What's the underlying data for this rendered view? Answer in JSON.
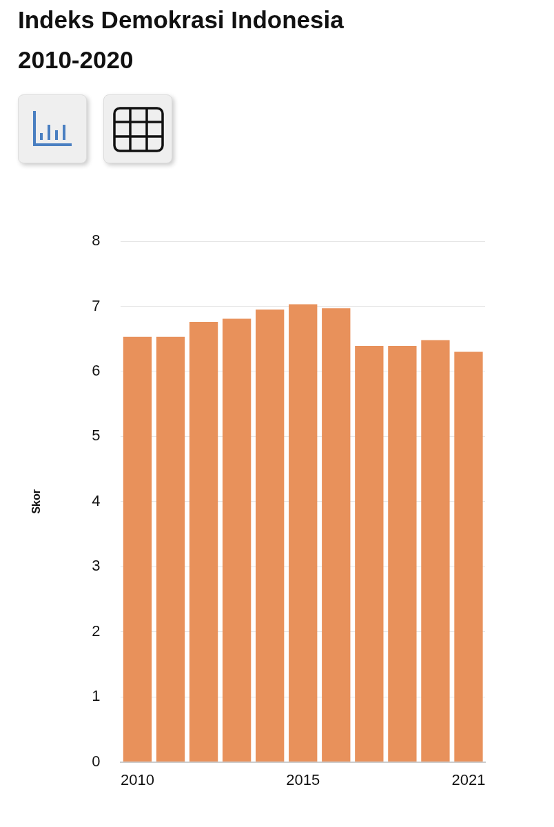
{
  "chart_data": {
    "type": "bar",
    "title": "Indeks Demokrasi Indonesia 2010-2020",
    "ylabel": "Skor",
    "categories": [
      "2010",
      null,
      null,
      null,
      null,
      "2015",
      null,
      null,
      null,
      null,
      "2021"
    ],
    "values": [
      6.53,
      6.53,
      6.76,
      6.81,
      6.95,
      7.03,
      6.97,
      6.39,
      6.39,
      6.48,
      6.3
    ],
    "color": "#e8915b",
    "ylim": [
      0,
      8
    ],
    "yticks": [
      0,
      1,
      2,
      3,
      4,
      5,
      6,
      7,
      8
    ],
    "grid": "y"
  }
}
